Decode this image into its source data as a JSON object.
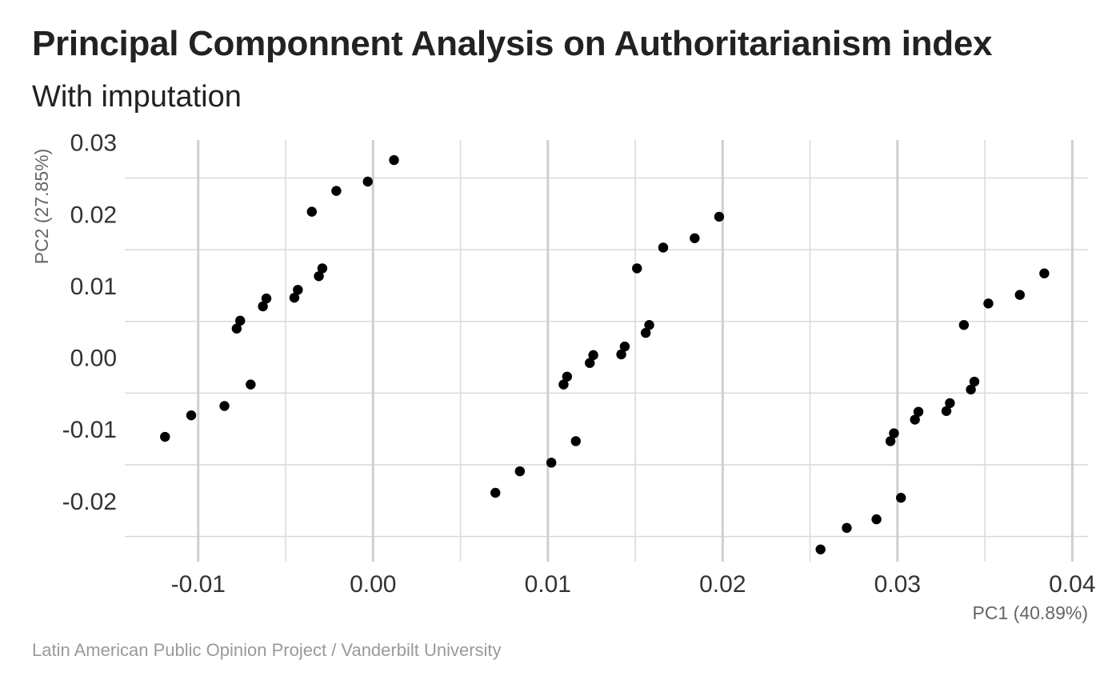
{
  "chart_data": {
    "type": "scatter",
    "title": "Principal Componnent Analysis on Authoritarianism index",
    "subtitle": "With imputation",
    "caption": "Latin American Public Opinion Project / Vanderbilt University",
    "xlabel": "PC1 (40.89%)",
    "ylabel": "PC2 (27.85%)",
    "xlim": [
      -0.0142,
      0.0409
    ],
    "ylim": [
      -0.0285,
      0.0303
    ],
    "x_ticks": [
      -0.01,
      0.0,
      0.01,
      0.02,
      0.03,
      0.04
    ],
    "x_tick_labels": [
      "-0.01",
      "0.00",
      "0.01",
      "0.02",
      "0.03",
      "0.04"
    ],
    "y_ticks": [
      -0.02,
      -0.01,
      0.0,
      0.01,
      0.02,
      0.03
    ],
    "y_tick_labels": [
      "-0.02",
      "-0.01",
      "0.00",
      "0.01",
      "0.02",
      "0.03"
    ],
    "grid": true,
    "point_color": "#000000",
    "points": [
      {
        "x": -0.0119,
        "y": -0.0111
      },
      {
        "x": -0.0104,
        "y": -0.0081
      },
      {
        "x": -0.0085,
        "y": -0.0068
      },
      {
        "x": -0.007,
        "y": -0.0038
      },
      {
        "x": -0.0078,
        "y": 0.004
      },
      {
        "x": -0.0076,
        "y": 0.0051
      },
      {
        "x": -0.0063,
        "y": 0.0071
      },
      {
        "x": -0.0061,
        "y": 0.0082
      },
      {
        "x": -0.0045,
        "y": 0.0083
      },
      {
        "x": -0.0043,
        "y": 0.0094
      },
      {
        "x": -0.0031,
        "y": 0.0113
      },
      {
        "x": -0.0029,
        "y": 0.0124
      },
      {
        "x": -0.0035,
        "y": 0.0203
      },
      {
        "x": -0.0021,
        "y": 0.0232
      },
      {
        "x": -0.0003,
        "y": 0.0245
      },
      {
        "x": 0.0012,
        "y": 0.0275
      },
      {
        "x": 0.007,
        "y": -0.0189
      },
      {
        "x": 0.0084,
        "y": -0.0159
      },
      {
        "x": 0.0102,
        "y": -0.0147
      },
      {
        "x": 0.0116,
        "y": -0.0117
      },
      {
        "x": 0.0109,
        "y": -0.0038
      },
      {
        "x": 0.0111,
        "y": -0.0027
      },
      {
        "x": 0.0124,
        "y": -0.0008
      },
      {
        "x": 0.0126,
        "y": 0.0003
      },
      {
        "x": 0.0142,
        "y": 0.0004
      },
      {
        "x": 0.0144,
        "y": 0.0015
      },
      {
        "x": 0.0156,
        "y": 0.0034
      },
      {
        "x": 0.0158,
        "y": 0.0045
      },
      {
        "x": 0.0151,
        "y": 0.0124
      },
      {
        "x": 0.0166,
        "y": 0.0153
      },
      {
        "x": 0.0184,
        "y": 0.0166
      },
      {
        "x": 0.0198,
        "y": 0.0196
      },
      {
        "x": 0.0256,
        "y": -0.0268
      },
      {
        "x": 0.0271,
        "y": -0.0238
      },
      {
        "x": 0.0288,
        "y": -0.0226
      },
      {
        "x": 0.0302,
        "y": -0.0196
      },
      {
        "x": 0.0296,
        "y": -0.0117
      },
      {
        "x": 0.0298,
        "y": -0.0106
      },
      {
        "x": 0.031,
        "y": -0.0087
      },
      {
        "x": 0.0312,
        "y": -0.0076
      },
      {
        "x": 0.0328,
        "y": -0.0075
      },
      {
        "x": 0.033,
        "y": -0.0064
      },
      {
        "x": 0.0342,
        "y": -0.0045
      },
      {
        "x": 0.0344,
        "y": -0.0034
      },
      {
        "x": 0.0338,
        "y": 0.0045
      },
      {
        "x": 0.0352,
        "y": 0.0075
      },
      {
        "x": 0.037,
        "y": 0.0087
      },
      {
        "x": 0.0384,
        "y": 0.0117
      }
    ]
  }
}
